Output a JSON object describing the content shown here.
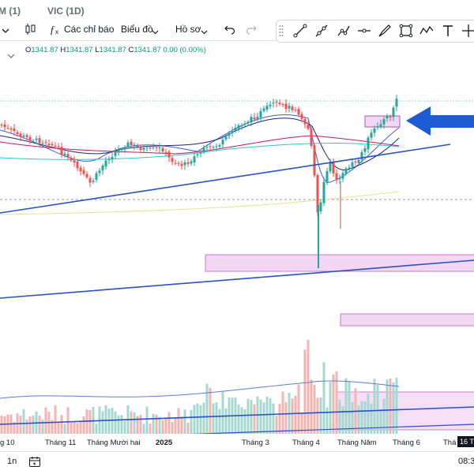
{
  "tabs": [
    {
      "label": "M (1)"
    },
    {
      "label": "VIC (1D)"
    }
  ],
  "toolbar": {
    "indicators_label": "Các chỉ báo",
    "chart_label": "Biểu đồ",
    "profile_label": "Hồ sơ"
  },
  "legend": {
    "open": "1341.87",
    "high": "1341.87",
    "low": "1341.87",
    "close": "1341.87",
    "change": "0.00 (0.00%)"
  },
  "time_axis": [
    "g 10",
    "Tháng 11",
    "Tháng Mười hai",
    "2025",
    "Tháng 3",
    "Tháng 4",
    "Tháng Năm",
    "Tháng 6",
    "Thá"
  ],
  "time_badge": "16 T",
  "bottom": {
    "interval": "1n",
    "clock": "08:3"
  },
  "colors": {
    "up": "#26a69a",
    "down": "#ef5350",
    "trendline": "#2950c8",
    "zone": "#e9bff0",
    "arrow": "#1e5bd6"
  },
  "icons": [
    "bar-style-icon",
    "indicators-icon",
    "chevron-down-icon",
    "undo-icon",
    "redo-icon",
    "trend-line-icon",
    "ray-icon",
    "path-icon",
    "horizontal-line-icon",
    "brush-icon",
    "rectangle-icon",
    "pattern-icon",
    "text-icon",
    "crosshair-icon",
    "calendar-icon"
  ]
}
